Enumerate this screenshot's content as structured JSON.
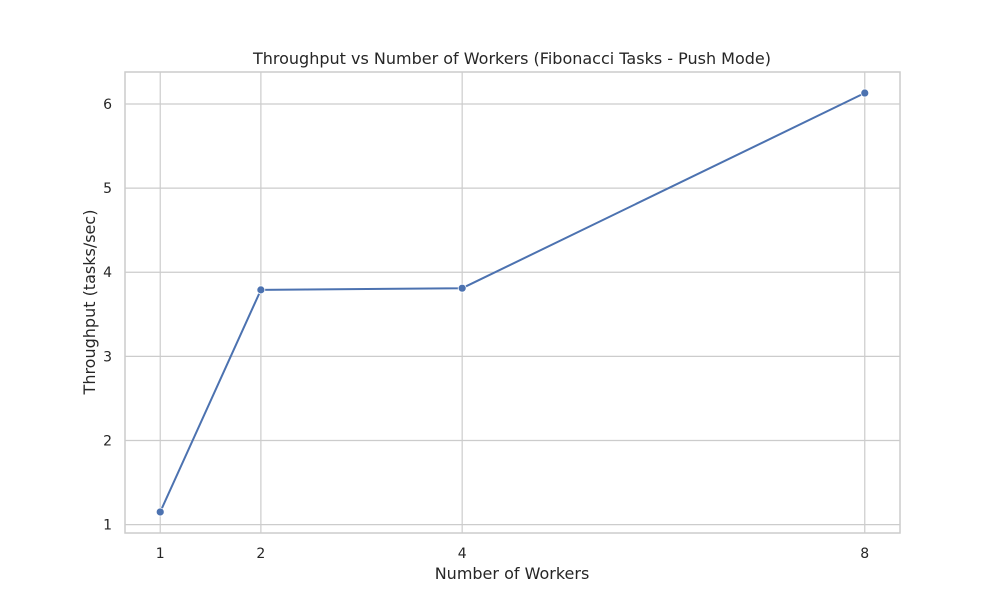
{
  "chart_data": {
    "type": "line",
    "title": "Throughput vs Number of Workers (Fibonacci Tasks - Push Mode)",
    "xlabel": "Number of Workers",
    "ylabel": "Throughput (tasks/sec)",
    "x": [
      1,
      2,
      4,
      8
    ],
    "series": [
      {
        "values": [
          1.15,
          3.79,
          3.81,
          6.13
        ]
      }
    ],
    "xticks": [
      1,
      2,
      4,
      8
    ],
    "yticks": [
      1,
      2,
      3,
      4,
      5,
      6
    ],
    "xlim": [
      0.65,
      8.35
    ],
    "ylim": [
      0.9,
      6.38
    ],
    "grid": true,
    "line_color": "#4c72b0"
  }
}
